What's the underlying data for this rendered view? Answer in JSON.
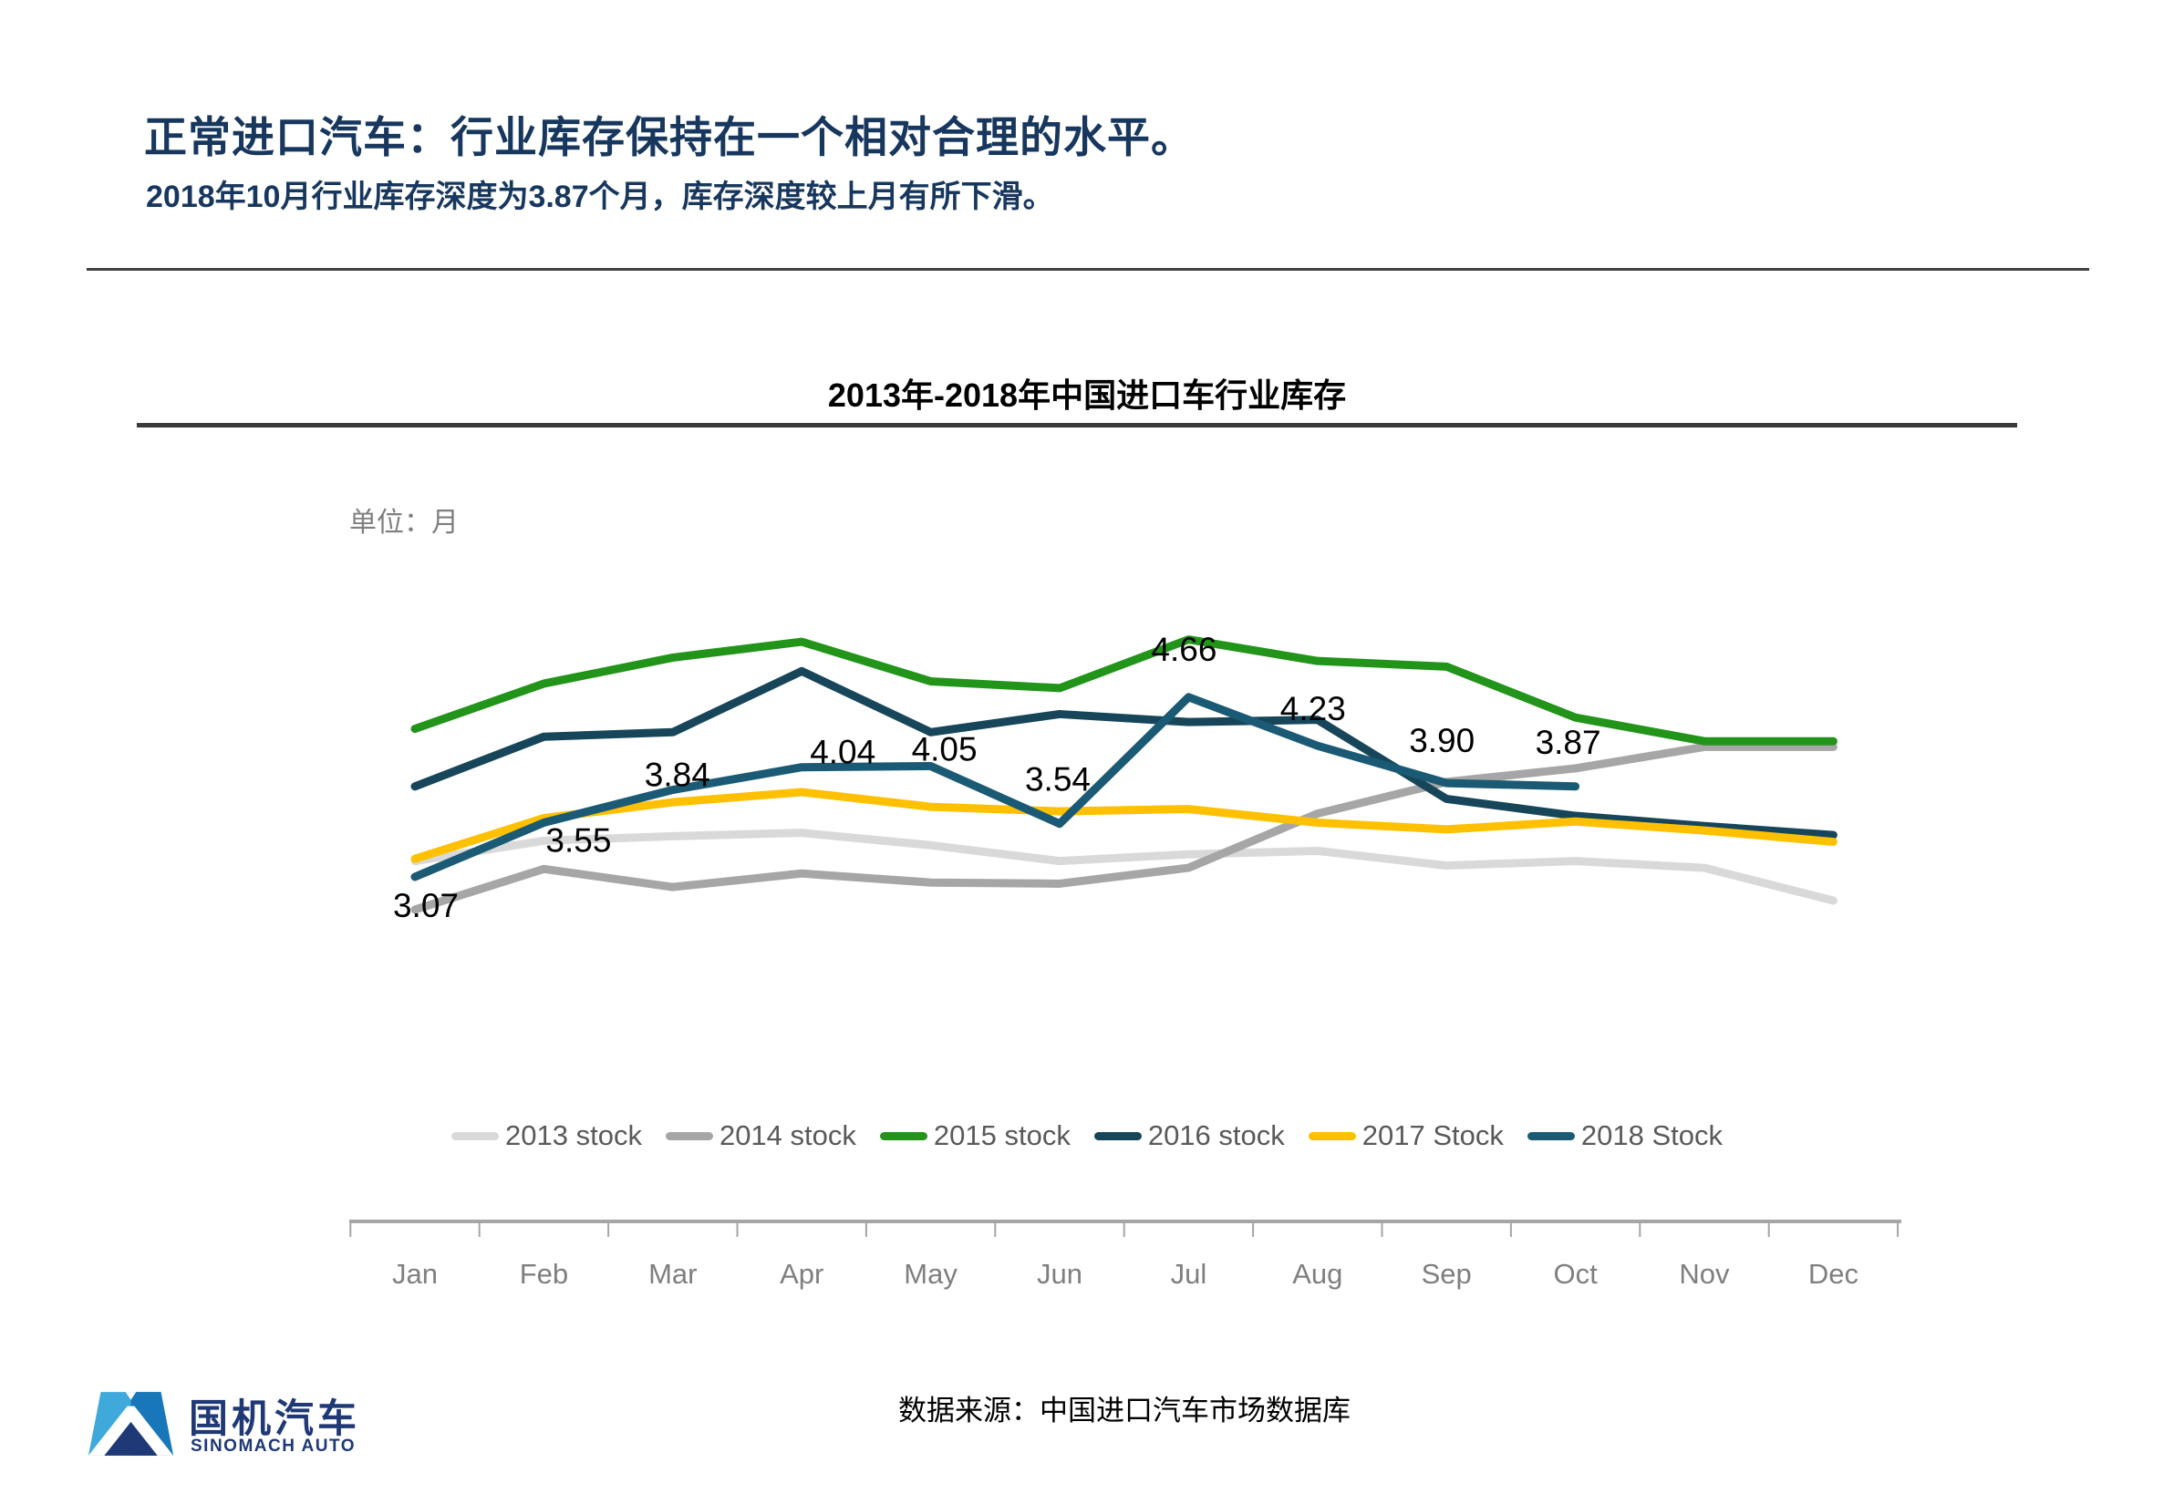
{
  "header": {
    "title": "正常进口汽车：行业库存保持在一个相对合理的水平。",
    "subtitle": "2018年10月行业库存深度为3.87个月，库存深度较上月有所下滑。"
  },
  "chart": {
    "title": "2013年-2018年中国进口车行业库存",
    "unit_label": "单位：月"
  },
  "chart_data": {
    "type": "line",
    "title": "2013年-2018年中国进口车行业库存",
    "ylabel": "月",
    "ylim": [
      2.5,
      5.5
    ],
    "grid": false,
    "legend_position": "bottom",
    "categories": [
      "Jan",
      "Feb",
      "Mar",
      "Apr",
      "May",
      "Jun",
      "Jul",
      "Aug",
      "Sep",
      "Oct",
      "Nov",
      "Dec"
    ],
    "series": [
      {
        "name": "2013 stock",
        "color": "#D9D9D9",
        "values": [
          3.21,
          3.39,
          3.43,
          3.46,
          3.35,
          3.21,
          3.27,
          3.3,
          3.17,
          3.21,
          3.15,
          2.86
        ]
      },
      {
        "name": "2014 stock",
        "color": "#A6A6A6",
        "values": [
          2.78,
          3.14,
          2.98,
          3.1,
          3.02,
          3.01,
          3.15,
          3.63,
          3.91,
          4.03,
          4.22,
          4.22
        ]
      },
      {
        "name": "2015 stock",
        "color": "#22941A",
        "values": [
          4.38,
          4.78,
          5.01,
          5.15,
          4.8,
          4.74,
          5.17,
          4.98,
          4.93,
          4.48,
          4.27,
          4.27
        ]
      },
      {
        "name": "2016 stock",
        "color": "#17465A",
        "values": [
          3.87,
          4.31,
          4.35,
          4.89,
          4.35,
          4.51,
          4.44,
          4.46,
          3.76,
          3.61,
          3.52,
          3.44
        ]
      },
      {
        "name": "2017 Stock",
        "color": "#FFC000",
        "values": [
          3.23,
          3.59,
          3.73,
          3.82,
          3.69,
          3.65,
          3.67,
          3.55,
          3.49,
          3.56,
          3.48,
          3.38
        ]
      },
      {
        "name": "2018 Stock",
        "color": "#1B5A74",
        "values": [
          3.07,
          3.55,
          3.84,
          4.04,
          4.05,
          3.54,
          4.66,
          4.23,
          3.9,
          3.87
        ],
        "labeled": true
      }
    ],
    "data_labels": [
      "3.07",
      "3.55",
      "3.84",
      "4.04",
      "4.05",
      "3.54",
      "4.66",
      "4.23",
      "3.90",
      "3.87"
    ]
  },
  "footer": {
    "source": "数据来源：中国进口汽车市场数据库",
    "logo_cn": "国机汽车",
    "logo_en": "SINOMACH AUTO"
  }
}
